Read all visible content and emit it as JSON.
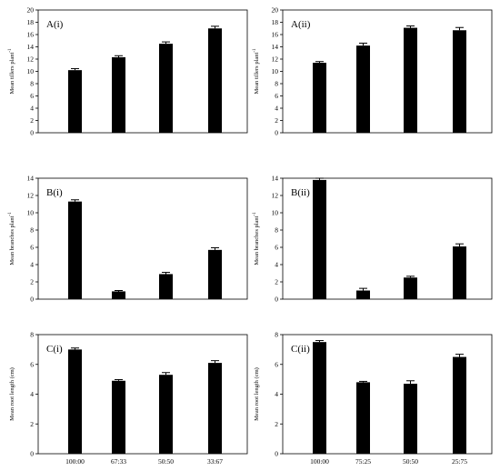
{
  "chart_data": [
    {
      "type": "bar",
      "panel_label": "A(i)",
      "ylabel": "Mean tillers plant",
      "ylabel_superscript": "-1",
      "ylim": [
        0,
        20
      ],
      "yticks": [
        "0",
        "2",
        "4",
        "6",
        "8",
        "10",
        "12",
        "14",
        "16",
        "18",
        "20"
      ],
      "categories": [
        "100:00",
        "67:33",
        "50:50",
        "33:67"
      ],
      "show_category_labels": false,
      "values": [
        10.2,
        12.3,
        14.5,
        17.0
      ],
      "errors": [
        0.25,
        0.25,
        0.3,
        0.35
      ]
    },
    {
      "type": "bar",
      "panel_label": "A(ii)",
      "ylabel": "Mean tillers plant",
      "ylabel_superscript": "-1",
      "ylim": [
        0,
        20
      ],
      "yticks": [
        "0",
        "2",
        "4",
        "6",
        "8",
        "10",
        "12",
        "14",
        "16",
        "18",
        "20"
      ],
      "categories": [
        "100:00",
        "75:25",
        "50:50",
        "25:75"
      ],
      "show_category_labels": false,
      "values": [
        11.4,
        14.2,
        17.1,
        16.7
      ],
      "errors": [
        0.2,
        0.4,
        0.3,
        0.45
      ]
    },
    {
      "type": "bar",
      "panel_label": "B(i)",
      "ylabel": "Mean branches plant",
      "ylabel_superscript": "-1",
      "ylim": [
        0,
        14
      ],
      "yticks": [
        "0",
        "2",
        "4",
        "6",
        "8",
        "10",
        "12",
        "14"
      ],
      "categories": [
        "100:00",
        "67:33",
        "50:50",
        "33:67"
      ],
      "show_category_labels": false,
      "values": [
        11.3,
        0.9,
        2.9,
        5.7
      ],
      "errors": [
        0.2,
        0.1,
        0.2,
        0.25
      ]
    },
    {
      "type": "bar",
      "panel_label": "B(ii)",
      "ylabel": "Mean branches plant",
      "ylabel_superscript": "-1",
      "ylim": [
        0,
        14
      ],
      "yticks": [
        "0",
        "2",
        "4",
        "6",
        "8",
        "10",
        "12",
        "14"
      ],
      "categories": [
        "100:00",
        "75:25",
        "50:50",
        "25:75"
      ],
      "show_category_labels": false,
      "values": [
        13.8,
        1.0,
        2.5,
        6.1
      ],
      "errors": [
        0.2,
        0.25,
        0.15,
        0.3
      ]
    },
    {
      "type": "bar",
      "panel_label": "C(i)",
      "ylabel": "Mean root length (cm)",
      "ylabel_superscript": "",
      "ylim": [
        0,
        8
      ],
      "yticks": [
        "0",
        "2",
        "4",
        "6",
        "8"
      ],
      "categories": [
        "100:00",
        "67:33",
        "50:50",
        "33:67"
      ],
      "show_category_labels": true,
      "values": [
        7.0,
        4.9,
        5.3,
        6.1
      ],
      "errors": [
        0.1,
        0.08,
        0.15,
        0.15
      ]
    },
    {
      "type": "bar",
      "panel_label": "C(ii)",
      "ylabel": "Mean root length (cm)",
      "ylabel_superscript": "",
      "ylim": [
        0,
        8
      ],
      "yticks": [
        "0",
        "2",
        "4",
        "6",
        "8"
      ],
      "categories": [
        "100:00",
        "75:25",
        "50:50",
        "25:75"
      ],
      "show_category_labels": true,
      "values": [
        7.5,
        4.8,
        4.7,
        6.5
      ],
      "errors": [
        0.1,
        0.06,
        0.2,
        0.18
      ]
    }
  ]
}
